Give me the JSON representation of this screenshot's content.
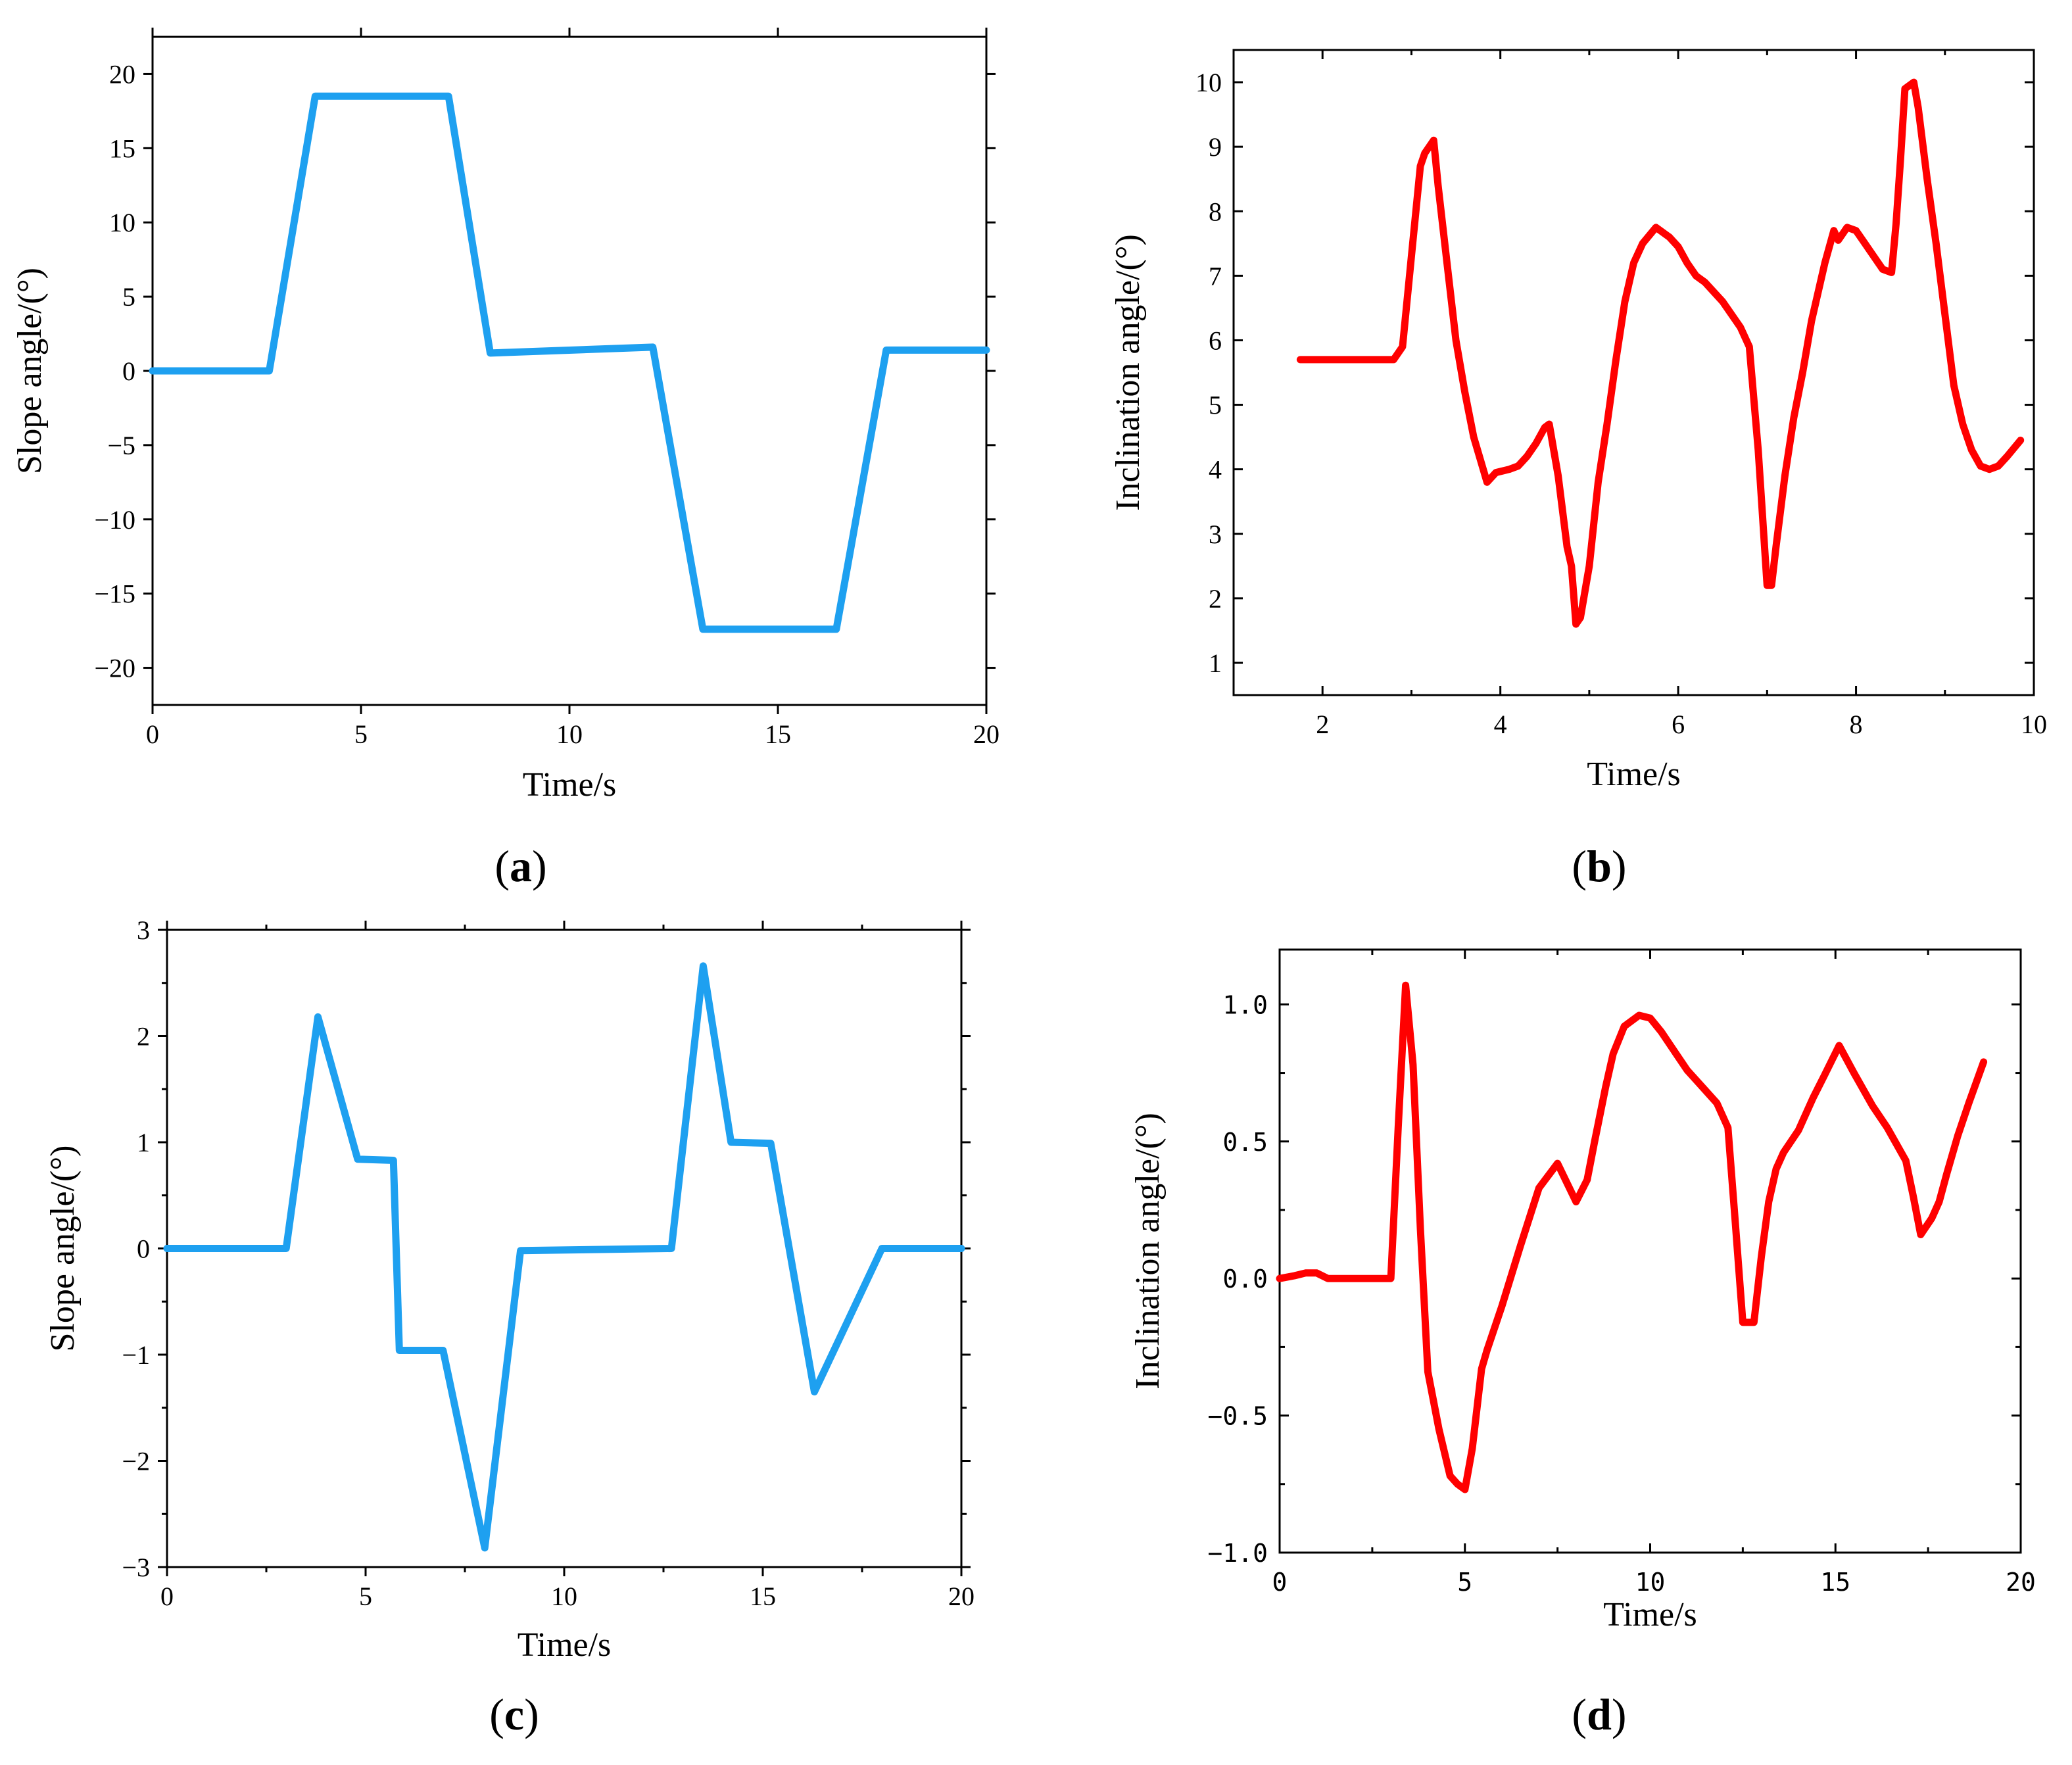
{
  "chart_data": [
    {
      "type": "line",
      "panel_label": "a",
      "xlabel": "Time/s",
      "ylabel": "Slope angle/(°)",
      "xlim": [
        0,
        20
      ],
      "ylim": [
        -22.5,
        22.5
      ],
      "xticks": [
        0,
        5,
        10,
        15,
        20
      ],
      "xtick_labels": [
        "0",
        "5",
        "10",
        "15",
        "20"
      ],
      "yticks": [
        20,
        15,
        10,
        5,
        0,
        -5,
        -10,
        -15,
        -20
      ],
      "ytick_labels": [
        "20",
        "15",
        "10",
        "5",
        "0",
        "−5",
        "−10",
        "−15",
        "−20"
      ],
      "grid": false,
      "series": [
        {
          "name": "Slope angle",
          "color": "#1ea0f0",
          "x": [
            0,
            2.8,
            3.9,
            7.1,
            8.1,
            12.0,
            13.2,
            16.4,
            17.6,
            20
          ],
          "y": [
            0,
            0,
            18.5,
            18.5,
            1.2,
            1.6,
            -17.4,
            -17.4,
            1.4,
            1.4
          ]
        }
      ]
    },
    {
      "type": "line",
      "panel_label": "b",
      "xlabel": "Time/s",
      "ylabel": "Inclination angle/(°)",
      "xlim": [
        1,
        10
      ],
      "ylim": [
        0.5,
        10.5
      ],
      "xticks": [
        2,
        4,
        6,
        8,
        10
      ],
      "xtick_labels": [
        "2",
        "4",
        "6",
        "8",
        "10"
      ],
      "yticks": [
        10,
        9,
        8,
        7,
        6,
        5,
        4,
        3,
        2,
        1
      ],
      "ytick_labels": [
        "10",
        "9",
        "8",
        "7",
        "6",
        "5",
        "4",
        "3",
        "2",
        "1"
      ],
      "grid": false,
      "series": [
        {
          "name": "Inclination angle",
          "color": "#ff0000",
          "x": [
            1.75,
            2.0,
            2.5,
            2.8,
            2.9,
            3.0,
            3.1,
            3.15,
            3.25,
            3.3,
            3.4,
            3.5,
            3.6,
            3.7,
            3.85,
            3.95,
            4.1,
            4.2,
            4.3,
            4.4,
            4.5,
            4.55,
            4.65,
            4.75,
            4.8,
            4.85,
            4.9,
            5.0,
            5.1,
            5.2,
            5.3,
            5.4,
            5.5,
            5.6,
            5.75,
            5.9,
            6.0,
            6.1,
            6.2,
            6.3,
            6.5,
            6.7,
            6.8,
            6.9,
            7.0,
            7.05,
            7.1,
            7.2,
            7.3,
            7.4,
            7.5,
            7.65,
            7.75,
            7.8,
            7.9,
            8.0,
            8.1,
            8.2,
            8.3,
            8.4,
            8.45,
            8.5,
            8.55,
            8.6,
            8.65,
            8.7,
            8.8,
            8.9,
            9.0,
            9.1,
            9.2,
            9.3,
            9.4,
            9.5,
            9.6,
            9.7,
            9.85
          ],
          "y": [
            5.7,
            5.7,
            5.7,
            5.7,
            5.9,
            7.3,
            8.7,
            8.9,
            9.1,
            8.4,
            7.2,
            6.0,
            5.2,
            4.5,
            3.8,
            3.95,
            4.0,
            4.05,
            4.2,
            4.4,
            4.65,
            4.7,
            3.9,
            2.8,
            2.5,
            1.6,
            1.7,
            2.5,
            3.8,
            4.7,
            5.7,
            6.6,
            7.2,
            7.5,
            7.75,
            7.6,
            7.45,
            7.2,
            7.0,
            6.9,
            6.6,
            6.2,
            5.9,
            4.3,
            2.2,
            2.2,
            2.8,
            3.9,
            4.8,
            5.5,
            6.3,
            7.2,
            7.7,
            7.55,
            7.75,
            7.7,
            7.5,
            7.3,
            7.1,
            7.05,
            7.8,
            8.8,
            9.9,
            9.95,
            10.0,
            9.6,
            8.5,
            7.5,
            6.4,
            5.3,
            4.7,
            4.3,
            4.05,
            4.0,
            4.05,
            4.2,
            4.45
          ]
        }
      ]
    },
    {
      "type": "line",
      "panel_label": "c",
      "xlabel": "Time/s",
      "ylabel": "Slope angle/(°)",
      "xlim": [
        0,
        20
      ],
      "ylim": [
        -3,
        3
      ],
      "xticks": [
        0,
        5,
        10,
        15,
        20
      ],
      "xtick_labels": [
        "0",
        "5",
        "10",
        "15",
        "20"
      ],
      "yticks": [
        3,
        2,
        1,
        0,
        -1,
        -2,
        -3
      ],
      "ytick_labels": [
        "3",
        "2",
        "1",
        "0",
        "−1",
        "−2",
        "−3"
      ],
      "grid": false,
      "series": [
        {
          "name": "Slope angle",
          "color": "#1ea0f0",
          "x": [
            0,
            3.0,
            3.8,
            4.8,
            5.7,
            5.85,
            6.95,
            8.0,
            8.9,
            12.7,
            13.5,
            14.2,
            15.2,
            16.3,
            18.0,
            20
          ],
          "y": [
            0,
            0,
            2.18,
            0.84,
            0.83,
            -0.96,
            -0.96,
            -2.82,
            -0.02,
            0,
            2.66,
            1.0,
            0.99,
            -1.35,
            0,
            0
          ]
        }
      ]
    },
    {
      "type": "line",
      "panel_label": "d",
      "xlabel": "Time/s",
      "ylabel": "Inclination angle/(°)",
      "xlim": [
        0,
        20
      ],
      "ylim": [
        -1.0,
        1.2
      ],
      "xticks": [
        0,
        5,
        10,
        15,
        20
      ],
      "xtick_labels": [
        "0",
        "5",
        "10",
        "15",
        "20"
      ],
      "yticks": [
        1.0,
        0.5,
        0.0,
        -0.5,
        -1.0
      ],
      "ytick_labels": [
        "1.0",
        "0.5",
        "0.0",
        "−0.5",
        "−1.0"
      ],
      "grid": false,
      "series": [
        {
          "name": "Inclination angle",
          "color": "#ff0000",
          "x": [
            0,
            0.4,
            0.7,
            1.0,
            1.3,
            1.5,
            2.0,
            2.5,
            3.0,
            3.2,
            3.4,
            3.6,
            3.8,
            4.0,
            4.3,
            4.6,
            4.8,
            5.0,
            5.2,
            5.45,
            5.6,
            6.0,
            6.5,
            7.0,
            7.5,
            8.0,
            8.3,
            8.5,
            8.8,
            9.0,
            9.3,
            9.7,
            10.0,
            10.3,
            10.7,
            11.0,
            11.4,
            11.8,
            12.1,
            12.3,
            12.5,
            12.8,
            13.0,
            13.2,
            13.4,
            13.6,
            14.0,
            14.4,
            14.7,
            15.1,
            15.5,
            16.0,
            16.4,
            16.9,
            17.1,
            17.3,
            17.6,
            17.8,
            18.0,
            18.3,
            18.6,
            19.0
          ],
          "y": [
            0.0,
            0.01,
            0.02,
            0.02,
            0.0,
            0.0,
            0.0,
            0.0,
            0.0,
            0.55,
            1.07,
            0.78,
            0.18,
            -0.34,
            -0.55,
            -0.72,
            -0.75,
            -0.77,
            -0.62,
            -0.33,
            -0.26,
            -0.1,
            0.12,
            0.33,
            0.42,
            0.28,
            0.36,
            0.5,
            0.7,
            0.82,
            0.92,
            0.96,
            0.95,
            0.9,
            0.82,
            0.76,
            0.7,
            0.64,
            0.55,
            0.2,
            -0.16,
            -0.16,
            0.08,
            0.28,
            0.4,
            0.46,
            0.54,
            0.66,
            0.74,
            0.85,
            0.75,
            0.63,
            0.55,
            0.43,
            0.3,
            0.16,
            0.22,
            0.28,
            0.38,
            0.52,
            0.64,
            0.79
          ]
        }
      ]
    }
  ]
}
